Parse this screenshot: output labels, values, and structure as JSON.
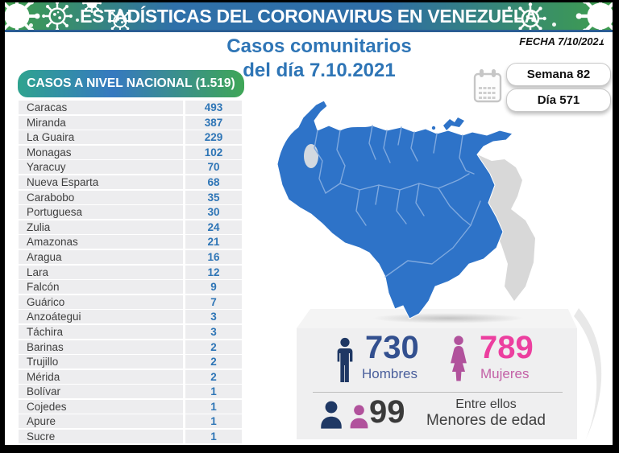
{
  "banner": {
    "title": "ESTADÍSTICAS DEL CORONAVIRUS EN VENEZUELA"
  },
  "fecha": "FECHA 7/10/2021",
  "title": {
    "line1": "Casos comunitarios",
    "line2": "del día 7.10.2021"
  },
  "badges": {
    "week": "Semana 82",
    "day": "Día 571"
  },
  "national": {
    "header": "CASOS A NIVEL NACIONAL (1.519)",
    "rows": [
      {
        "state": "Caracas",
        "cases": "493"
      },
      {
        "state": "Miranda",
        "cases": "387"
      },
      {
        "state": "La Guaira",
        "cases": "229"
      },
      {
        "state": "Monagas",
        "cases": "102"
      },
      {
        "state": "Yaracuy",
        "cases": "70"
      },
      {
        "state": "Nueva Esparta",
        "cases": "68"
      },
      {
        "state": "Carabobo",
        "cases": "35"
      },
      {
        "state": "Portuguesa",
        "cases": "30"
      },
      {
        "state": "Zulia",
        "cases": "24"
      },
      {
        "state": "Amazonas",
        "cases": "21"
      },
      {
        "state": "Aragua",
        "cases": "16"
      },
      {
        "state": "Lara",
        "cases": "12"
      },
      {
        "state": "Falcón",
        "cases": "9"
      },
      {
        "state": "Guárico",
        "cases": "7"
      },
      {
        "state": "Anzoátegui",
        "cases": "3"
      },
      {
        "state": "Táchira",
        "cases": "3"
      },
      {
        "state": "Barinas",
        "cases": "2"
      },
      {
        "state": "Trujillo",
        "cases": "2"
      },
      {
        "state": "Mérida",
        "cases": "2"
      },
      {
        "state": "Bolívar",
        "cases": "1"
      },
      {
        "state": "Cojedes",
        "cases": "1"
      },
      {
        "state": "Apure",
        "cases": "1"
      },
      {
        "state": "Sucre",
        "cases": "1"
      }
    ]
  },
  "gender": {
    "men_value": "730",
    "men_label": "Hombres",
    "women_value": "789",
    "women_label": "Mujeres",
    "minors_value": "99",
    "minors_line1": "Entre ellos",
    "minors_line2": "Menores de edad"
  },
  "colors": {
    "banner_green": "#3E9E4C",
    "banner_blue": "#2E6DA6",
    "accent_blue": "#2E75B6",
    "map_blue": "#2E73C8",
    "map_border": "#7FA9DF",
    "claimed_zone_gray": "#D8D8D8",
    "men_navy": "#1F3864",
    "women_pink": "#B1529C",
    "women_value_pink": "#EC3F9F"
  },
  "chart_data": {
    "type": "table",
    "title": "Casos comunitarios del día 7.10.2021",
    "total_label": "CASOS A NIVEL NACIONAL (1.519)",
    "total": 1519,
    "categories": [
      "Caracas",
      "Miranda",
      "La Guaira",
      "Monagas",
      "Yaracuy",
      "Nueva Esparta",
      "Carabobo",
      "Portuguesa",
      "Zulia",
      "Amazonas",
      "Aragua",
      "Lara",
      "Falcón",
      "Guárico",
      "Anzoátegui",
      "Táchira",
      "Barinas",
      "Trujillo",
      "Mérida",
      "Bolívar",
      "Cojedes",
      "Apure",
      "Sucre"
    ],
    "values": [
      493,
      387,
      229,
      102,
      70,
      68,
      35,
      30,
      24,
      21,
      16,
      12,
      9,
      7,
      3,
      3,
      2,
      2,
      2,
      1,
      1,
      1,
      1
    ],
    "hombres": 730,
    "mujeres": 789,
    "menores_de_edad": 99,
    "semana": 82,
    "dia": 571,
    "fecha": "7/10/2021"
  }
}
